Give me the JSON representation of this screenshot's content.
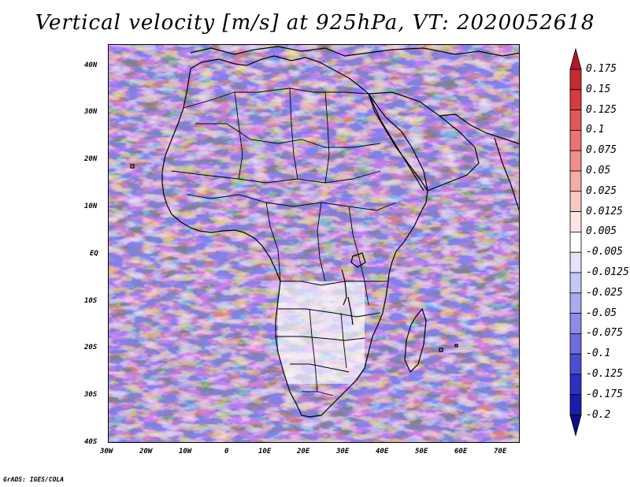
{
  "title": "Vertical velocity [m/s] at 925hPa, VT: 2020052618",
  "credit": "GrADS: IGES/COLA",
  "y_ticks": [
    "40N",
    "30N",
    "20N",
    "10N",
    "EQ",
    "10S",
    "20S",
    "30S",
    "40S"
  ],
  "x_ticks": [
    "30W",
    "20W",
    "10W",
    "0",
    "10E",
    "20E",
    "30E",
    "40E",
    "50E",
    "60E",
    "70E"
  ],
  "colorbar": {
    "labels": [
      "0.175",
      "0.15",
      "0.125",
      "0.1",
      "0.075",
      "0.05",
      "0.025",
      "0.0125",
      "0.005",
      "-0.005",
      "-0.0125",
      "-0.025",
      "-0.05",
      "-0.075",
      "-0.1",
      "-0.125",
      "-0.175",
      "-0.2"
    ],
    "colors": [
      "#b2182b",
      "#c62a33",
      "#d73a3f",
      "#e2575a",
      "#ea7371",
      "#f08f8b",
      "#f5aba6",
      "#f9c8c4",
      "#fde5e3",
      "#ffffff",
      "#e3e3fb",
      "#c7c7f5",
      "#aaaaef",
      "#8c8ce6",
      "#6d6ddc",
      "#4d4dd0",
      "#3030c0",
      "#1c1ca8",
      "#0d0d8c"
    ]
  },
  "colors": {
    "land_outline": "#000000",
    "background": "#ffffff"
  }
}
